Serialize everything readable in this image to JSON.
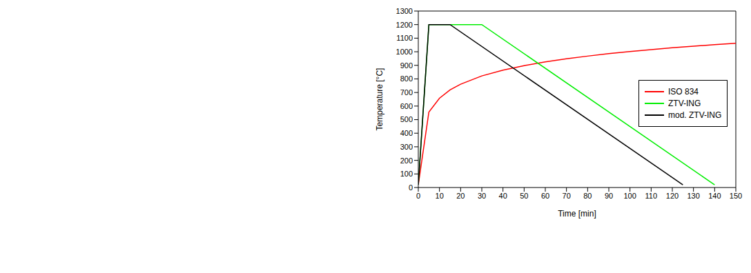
{
  "chart_data": {
    "type": "line",
    "x_label": "Time [min]",
    "y_label": "Temperature [°C]",
    "xlim": [
      0,
      150
    ],
    "xticks": [
      0,
      10,
      20,
      30,
      40,
      50,
      60,
      70,
      80,
      90,
      100,
      110,
      120,
      130,
      140,
      150
    ],
    "ylim": [
      0,
      1300
    ],
    "yticks": [
      0,
      100,
      200,
      300,
      400,
      500,
      600,
      700,
      800,
      900,
      1000,
      1100,
      1200,
      1300
    ],
    "grid": false,
    "legend": "upper right",
    "series": [
      {
        "name": "ISO 834",
        "color": "#ff0000",
        "x": [
          0,
          5,
          10,
          15,
          20,
          30,
          40,
          50,
          60,
          70,
          80,
          90,
          100,
          110,
          120,
          130,
          140,
          150
        ],
        "values": [
          20,
          556,
          658,
          719,
          761,
          822,
          865,
          898,
          925,
          948,
          968,
          986,
          1002,
          1016,
          1029,
          1041,
          1052,
          1062
        ]
      },
      {
        "name": "ZTV-ING",
        "color": "#00ee00",
        "x": [
          0,
          5,
          30,
          140
        ],
        "values": [
          20,
          1200,
          1200,
          20
        ]
      },
      {
        "name": "mod. ZTV-ING",
        "color": "#000000",
        "x": [
          0,
          5,
          15,
          125
        ],
        "values": [
          20,
          1200,
          1200,
          20
        ]
      }
    ]
  }
}
